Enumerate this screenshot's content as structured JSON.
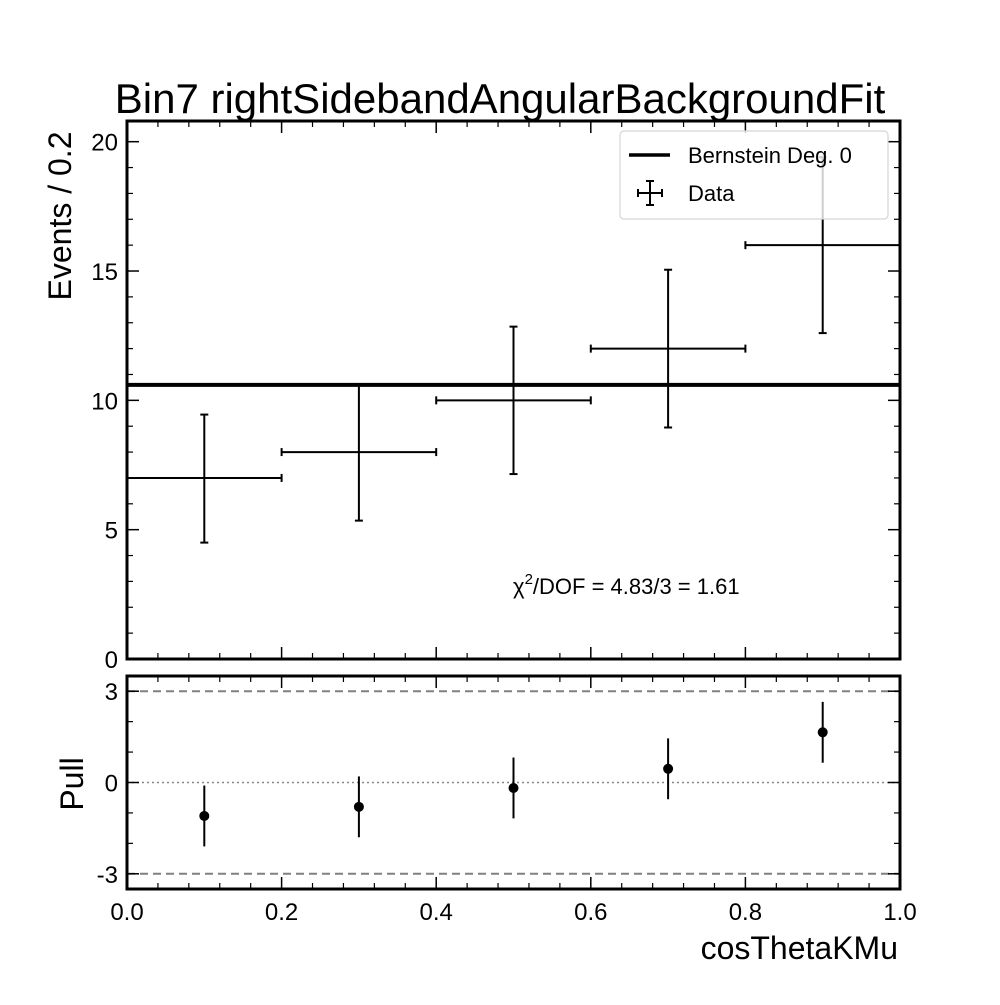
{
  "chart_data": {
    "type": "scatter",
    "title": "Bin7 rightSidebandAngularBackgroundFit",
    "xlabel": "cosThetaKMu",
    "ylabel": "Events / 0.2",
    "xlim": [
      0.0,
      1.0
    ],
    "ylim": [
      0,
      20.8
    ],
    "x_ticks": [
      "0.0",
      "0.2",
      "0.4",
      "0.6",
      "0.8",
      "1.0"
    ],
    "y_ticks": [
      "0",
      "5",
      "10",
      "15",
      "20"
    ],
    "legend": {
      "placement": "top-right",
      "entries": [
        "Bernstein Deg. 0",
        "Data"
      ]
    },
    "series": [
      {
        "name": "Data",
        "x": [
          0.1,
          0.3,
          0.5,
          0.7,
          0.9
        ],
        "y": [
          7,
          8,
          10,
          12,
          16
        ],
        "x_halfwidth": 0.1,
        "yerr_low": [
          2.5,
          2.65,
          2.85,
          3.05,
          3.4
        ],
        "yerr_high": [
          2.45,
          2.6,
          2.85,
          3.05,
          3.4
        ]
      },
      {
        "name": "Bernstein Deg. 0",
        "x": [
          0.0,
          1.0
        ],
        "y": [
          10.6,
          10.6
        ]
      }
    ],
    "annotation": {
      "chi_symbol": "χ",
      "chi_power": "2",
      "text": "/DOF = 4.83/3 = 1.61"
    },
    "pull_panel": {
      "ylabel": "Pull",
      "ylim": [
        -3.5,
        3.5
      ],
      "y_ticks": [
        "-3",
        "0",
        "3"
      ],
      "reference_lines": [
        -3,
        0,
        3
      ],
      "x": [
        0.1,
        0.3,
        0.5,
        0.7,
        0.9
      ],
      "y": [
        -1.1,
        -0.8,
        -0.18,
        0.45,
        1.65
      ],
      "err": [
        1.0,
        1.0,
        1.0,
        1.0,
        1.0
      ]
    }
  }
}
